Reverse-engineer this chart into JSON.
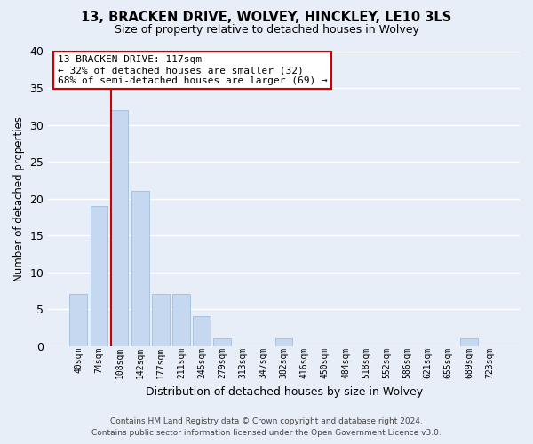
{
  "title": "13, BRACKEN DRIVE, WOLVEY, HINCKLEY, LE10 3LS",
  "subtitle": "Size of property relative to detached houses in Wolvey",
  "xlabel": "Distribution of detached houses by size in Wolvey",
  "ylabel": "Number of detached properties",
  "bar_labels": [
    "40sqm",
    "74sqm",
    "108sqm",
    "142sqm",
    "177sqm",
    "211sqm",
    "245sqm",
    "279sqm",
    "313sqm",
    "347sqm",
    "382sqm",
    "416sqm",
    "450sqm",
    "484sqm",
    "518sqm",
    "552sqm",
    "586sqm",
    "621sqm",
    "655sqm",
    "689sqm",
    "723sqm"
  ],
  "bar_values": [
    7,
    19,
    32,
    21,
    7,
    7,
    4,
    1,
    0,
    0,
    1,
    0,
    0,
    0,
    0,
    0,
    0,
    0,
    0,
    1,
    0
  ],
  "bar_color": "#c5d8ef",
  "bar_edge_color": "#a8c4e0",
  "marker_line_color": "#cc0000",
  "ylim": [
    0,
    40
  ],
  "yticks": [
    0,
    5,
    10,
    15,
    20,
    25,
    30,
    35,
    40
  ],
  "annotation_title": "13 BRACKEN DRIVE: 117sqm",
  "annotation_line1": "← 32% of detached houses are smaller (32)",
  "annotation_line2": "68% of semi-detached houses are larger (69) →",
  "annotation_box_color": "#ffffff",
  "annotation_border_color": "#cc0000",
  "footer_line1": "Contains HM Land Registry data © Crown copyright and database right 2024.",
  "footer_line2": "Contains public sector information licensed under the Open Government Licence v3.0.",
  "background_color": "#e8eef8",
  "grid_color": "#ffffff"
}
